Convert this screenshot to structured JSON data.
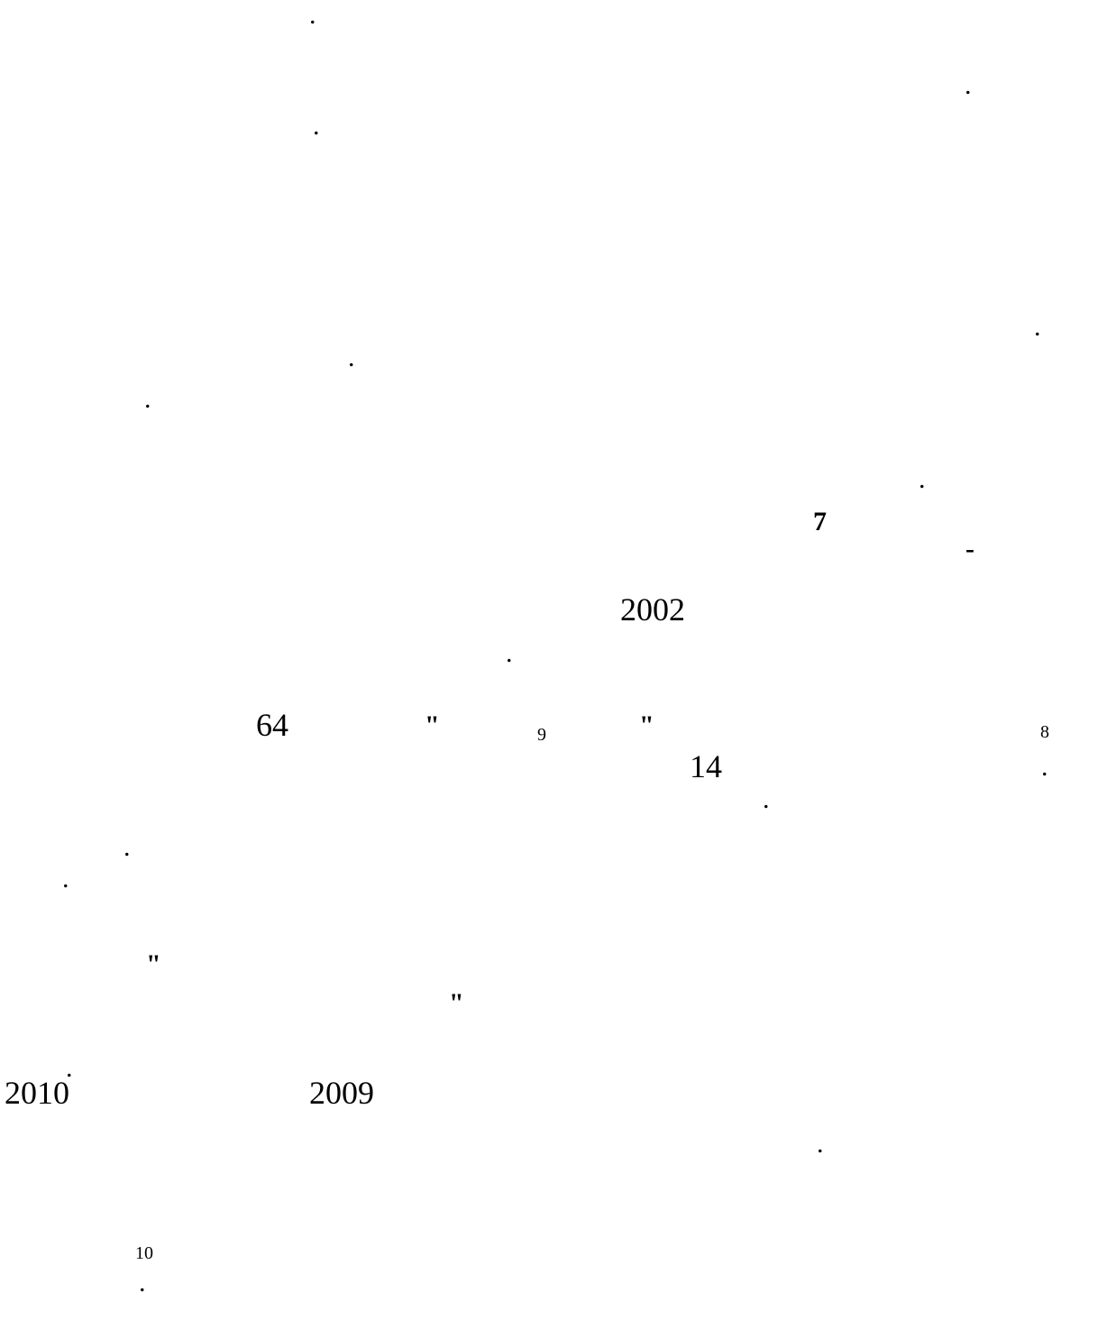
{
  "dots": [
    ".",
    ".",
    ".",
    ".",
    ".",
    ".",
    ".",
    ".",
    ".",
    ".",
    ".",
    ".",
    ".",
    ".",
    "."
  ],
  "heading_number": "7",
  "dash": "-",
  "year_2002": "2002",
  "num_64": "64",
  "quote_open_1": "\"",
  "footnote_9": "9",
  "quote_close_1": "\"",
  "footnote_8": "8",
  "num_14": "14",
  "quote_open_2": "\"",
  "quote_close_2": "\"",
  "year_2010": "2010",
  "year_2009": "2009",
  "footnote_10": "10"
}
